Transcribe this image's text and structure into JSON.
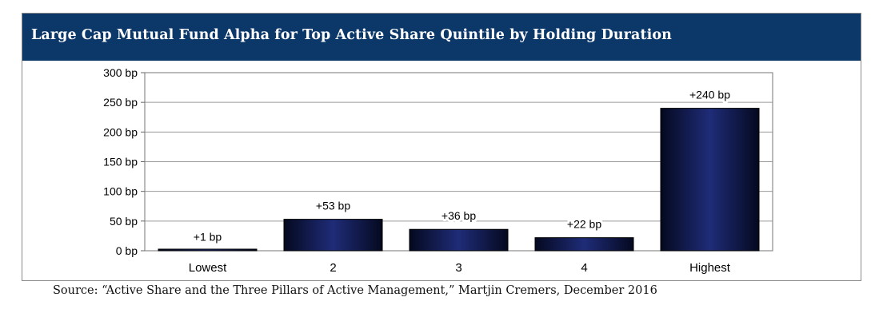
{
  "header": {
    "title": "Large Cap Mutual Fund Alpha for Top Active Share Quintile by Holding Duration"
  },
  "footer": {
    "source": "Source: “Active Share and the Three Pillars of Active Management,” Martjin Cremers, December 2016"
  },
  "colors": {
    "title_bar": "#0c3769",
    "bar_dark": "#04091f",
    "bar_mid": "#1f2c78"
  },
  "chart_data": {
    "type": "bar",
    "title": "Large Cap Mutual Fund Alpha for Top Active Share Quintile by Holding Duration",
    "categories": [
      "Lowest",
      "2",
      "3",
      "4",
      "Highest"
    ],
    "values": [
      1,
      53,
      36,
      22,
      240
    ],
    "data_labels": [
      "+1 bp",
      "+53 bp",
      "+36 bp",
      "+22 bp",
      "+240 bp"
    ],
    "unit": "bp",
    "ylim": [
      0,
      300
    ],
    "yticks": [
      0,
      50,
      100,
      150,
      200,
      250,
      300
    ],
    "ytick_labels": [
      "0 bp",
      "50 bp",
      "100 bp",
      "150 bp",
      "200 bp",
      "250 bp",
      "300 bp"
    ],
    "xlabel": "",
    "ylabel": "",
    "grid": true,
    "legend": "none"
  }
}
